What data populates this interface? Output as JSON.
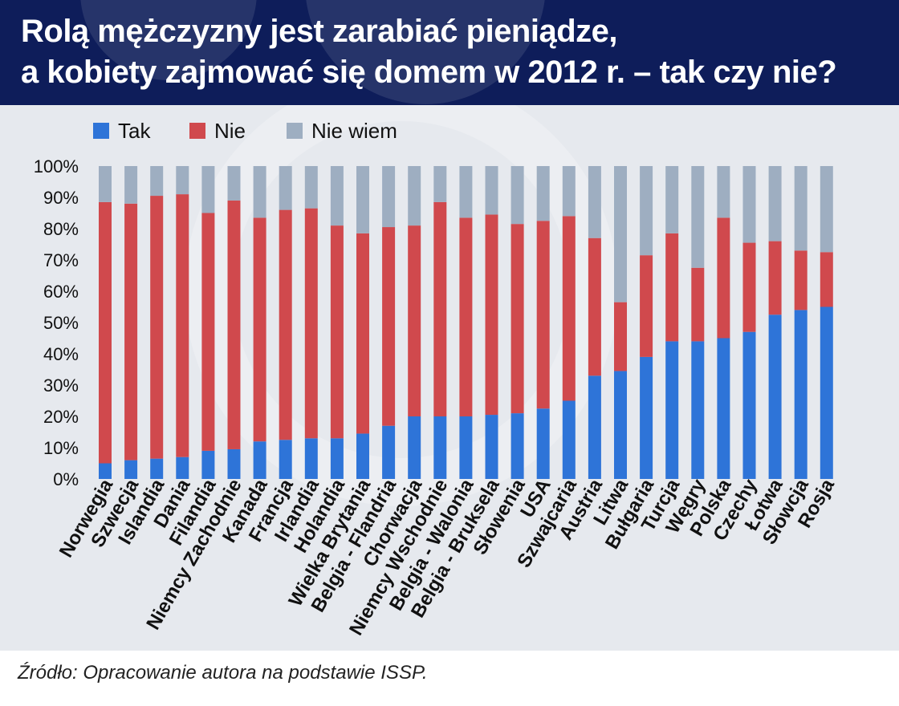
{
  "title_lines": [
    "Rolą mężczyzny jest zarabiać pieniądze,",
    "a kobiety zajmować się domem w 2012 r. – tak czy nie?"
  ],
  "source": "Źródło: Opracowanie autora na podstawie ISSP.",
  "colors": {
    "tak": "#2e74d8",
    "nie": "#d0494d",
    "nie_wiem": "#9eaec1"
  },
  "chart_data": {
    "type": "bar",
    "stacked": true,
    "percent": true,
    "ylim": [
      0,
      100
    ],
    "yticks": [
      "0%",
      "10%",
      "20%",
      "30%",
      "40%",
      "50%",
      "60%",
      "70%",
      "80%",
      "90%",
      "100%"
    ],
    "legend": [
      "Tak",
      "Nie",
      "Nie wiem"
    ],
    "legend_position": "top-left",
    "categories": [
      "Norwegia",
      "Szwecja",
      "Islandia",
      "Dania",
      "Filandia",
      "Niemcy Zachodnie",
      "Kanada",
      "Francja",
      "Irlandia",
      "Holandia",
      "Wielka Brytania",
      "Belgia - Flandria",
      "Chorwacja",
      "Niemcy Wschodnie",
      "Belgia - Walonia",
      "Belgia - Bruksela",
      "Słowenia",
      "USA",
      "Szwajcaria",
      "Austria",
      "Litwa",
      "Bułgaria",
      "Turcja",
      "Węgry",
      "Polska",
      "Czechy",
      "Łotwa",
      "Słowcja",
      "Rosja"
    ],
    "series": [
      {
        "name": "Tak",
        "values": [
          5,
          6,
          6.5,
          7,
          9,
          9.5,
          12,
          12.5,
          13,
          13,
          14.5,
          17,
          20,
          20,
          20,
          20.5,
          21,
          22.5,
          25,
          33,
          34.5,
          39,
          44,
          44,
          45,
          47,
          52.5,
          54,
          55
        ]
      },
      {
        "name": "Nie",
        "values": [
          83.5,
          82,
          84,
          84,
          76,
          79.5,
          71.5,
          73.5,
          73.5,
          68,
          64,
          63.5,
          61,
          68.5,
          63.5,
          64,
          60.5,
          60,
          59,
          44,
          22,
          32.5,
          34.5,
          23.5,
          38.5,
          28.5,
          23.5,
          19,
          17.5
        ]
      },
      {
        "name": "Nie wiem",
        "values": [
          11.5,
          12,
          9.5,
          9,
          15,
          11,
          16.5,
          14,
          13.5,
          19,
          21.5,
          19.5,
          19,
          11.5,
          16.5,
          15.5,
          18.5,
          17.5,
          16,
          23,
          43.5,
          28.5,
          21.5,
          32.5,
          16.5,
          24.5,
          24,
          27,
          27.5
        ]
      }
    ]
  }
}
